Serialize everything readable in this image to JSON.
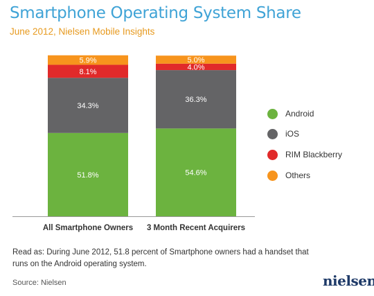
{
  "colors": {
    "android": "#6cb33f",
    "ios": "#646466",
    "rim": "#e12a2a",
    "others": "#f7941d",
    "title": "#3fa3d6",
    "subtitle": "#e79a1f"
  },
  "chart_data": {
    "type": "bar",
    "stacked": true,
    "title": "Smartphone Operating System Share",
    "subtitle": "June 2012, Nielsen Mobile Insights",
    "categories": [
      "All Smartphone Owners",
      "3 Month Recent Acquirers"
    ],
    "series": [
      {
        "name": "Android",
        "color": "#6cb33f",
        "values": [
          51.8,
          54.6
        ],
        "labels": [
          "51.8%",
          "54.6%"
        ]
      },
      {
        "name": "iOS",
        "color": "#646466",
        "values": [
          34.3,
          36.3
        ],
        "labels": [
          "34.3%",
          "36.3%"
        ]
      },
      {
        "name": "RIM Blackberry",
        "color": "#e12a2a",
        "values": [
          8.1,
          4.0
        ],
        "labels": [
          "8.1%",
          "4.0%"
        ]
      },
      {
        "name": "Others",
        "color": "#f7941d",
        "values": [
          5.9,
          5.0
        ],
        "labels": [
          "5.9%",
          "5.0%"
        ]
      }
    ],
    "ylim": [
      0,
      100
    ],
    "legend": "right",
    "grid": false
  },
  "legend": [
    {
      "name": "Android",
      "color": "#6cb33f"
    },
    {
      "name": "iOS",
      "color": "#646466"
    },
    {
      "name": "RIM Blackberry",
      "color": "#e12a2a"
    },
    {
      "name": "Others",
      "color": "#f7941d"
    }
  ],
  "note": "Read as: During June 2012, 51.8 percent of Smartphone owners had a handset that runs on the Android operating system.",
  "source": "Source: Nielsen",
  "logo_text": "nielsen"
}
